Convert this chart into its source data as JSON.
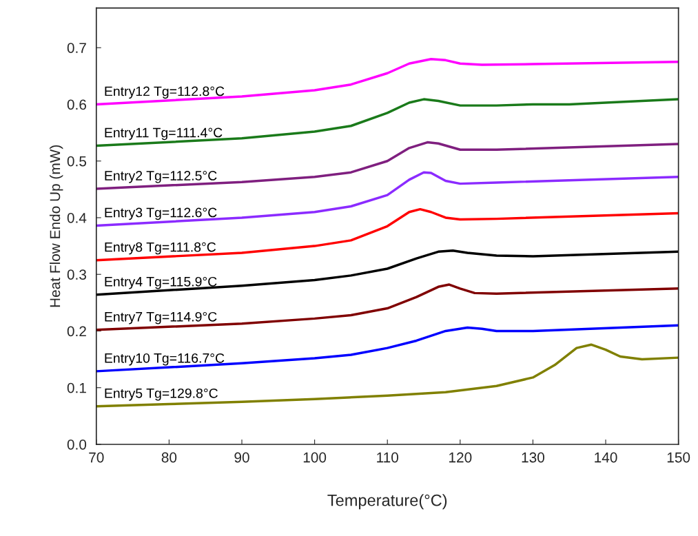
{
  "chart_data": {
    "type": "line",
    "xlabel": "Temperature(°C)",
    "ylabel": "Heat Flow Endo Up (mW)",
    "xlim": [
      70,
      150
    ],
    "ylim": [
      0,
      0.77
    ],
    "xticks": [
      70,
      80,
      90,
      100,
      110,
      120,
      130,
      140,
      150
    ],
    "yticks": [
      {
        "value": 0,
        "label": "0.0"
      },
      0.1,
      0.2,
      0.3,
      0.4,
      0.5,
      0.6,
      0.7
    ],
    "grid": false,
    "legend": false,
    "line_style": "solid",
    "marker": "none",
    "series": [
      {
        "name": "Entry12 Tg=112.8°C",
        "color": "#ff00ff",
        "x": [
          70,
          90,
          100,
          105,
          110,
          113,
          116,
          118,
          120,
          123,
          130,
          150
        ],
        "values": [
          0.6,
          0.614,
          0.625,
          0.635,
          0.655,
          0.672,
          0.68,
          0.678,
          0.672,
          0.67,
          0.671,
          0.675
        ]
      },
      {
        "name": "Entry11 Tg=111.4°C",
        "color": "#1a7a1a",
        "x": [
          70,
          90,
          100,
          105,
          110,
          113,
          115,
          117,
          120,
          125,
          130,
          135,
          150
        ],
        "values": [
          0.527,
          0.54,
          0.552,
          0.562,
          0.585,
          0.603,
          0.609,
          0.606,
          0.598,
          0.598,
          0.6,
          0.6,
          0.609
        ]
      },
      {
        "name": "Entry2 Tg=112.5°C",
        "color": "#7f1f7f",
        "x": [
          70,
          90,
          100,
          105,
          110,
          113,
          115.5,
          117,
          120,
          125,
          150
        ],
        "values": [
          0.451,
          0.463,
          0.472,
          0.48,
          0.5,
          0.523,
          0.533,
          0.531,
          0.52,
          0.52,
          0.53
        ]
      },
      {
        "name": "Entry3 Tg=112.6°C",
        "color": "#8b2bff",
        "x": [
          70,
          90,
          100,
          105,
          110,
          113,
          115,
          116,
          118,
          120,
          125,
          150
        ],
        "values": [
          0.386,
          0.4,
          0.41,
          0.42,
          0.44,
          0.467,
          0.48,
          0.479,
          0.465,
          0.46,
          0.462,
          0.472
        ]
      },
      {
        "name": "Entry8 Tg=111.8°C",
        "color": "#ff0000",
        "x": [
          70,
          90,
          100,
          105,
          110,
          113,
          114.5,
          116,
          118,
          120,
          125,
          150
        ],
        "values": [
          0.325,
          0.338,
          0.35,
          0.36,
          0.385,
          0.41,
          0.415,
          0.41,
          0.4,
          0.397,
          0.398,
          0.408
        ]
      },
      {
        "name": "Entry4 Tg=115.9°C",
        "color": "#000000",
        "x": [
          70,
          90,
          100,
          105,
          110,
          114,
          117,
          119,
          121,
          125,
          130,
          150
        ],
        "values": [
          0.264,
          0.28,
          0.29,
          0.298,
          0.31,
          0.328,
          0.34,
          0.342,
          0.338,
          0.333,
          0.332,
          0.34
        ]
      },
      {
        "name": "Entry7 Tg=114.9°C",
        "color": "#800000",
        "x": [
          70,
          90,
          100,
          105,
          110,
          114,
          117,
          118.5,
          120,
          122,
          125,
          150
        ],
        "values": [
          0.202,
          0.213,
          0.222,
          0.228,
          0.24,
          0.26,
          0.278,
          0.282,
          0.275,
          0.267,
          0.266,
          0.275
        ]
      },
      {
        "name": "Entry10 Tg=116.7°C",
        "color": "#0000ff",
        "x": [
          70,
          90,
          100,
          105,
          110,
          114,
          118,
          121,
          123,
          125,
          130,
          150
        ],
        "values": [
          0.129,
          0.143,
          0.152,
          0.158,
          0.17,
          0.183,
          0.2,
          0.206,
          0.204,
          0.2,
          0.2,
          0.21
        ]
      },
      {
        "name": "Entry5 Tg=129.8°C",
        "color": "#808000",
        "x": [
          70,
          80,
          90,
          100,
          110,
          118,
          125,
          130,
          133,
          136,
          138,
          140,
          142,
          145,
          150
        ],
        "values": [
          0.067,
          0.071,
          0.075,
          0.08,
          0.086,
          0.092,
          0.103,
          0.118,
          0.14,
          0.17,
          0.176,
          0.167,
          0.155,
          0.15,
          0.153
        ]
      }
    ]
  }
}
